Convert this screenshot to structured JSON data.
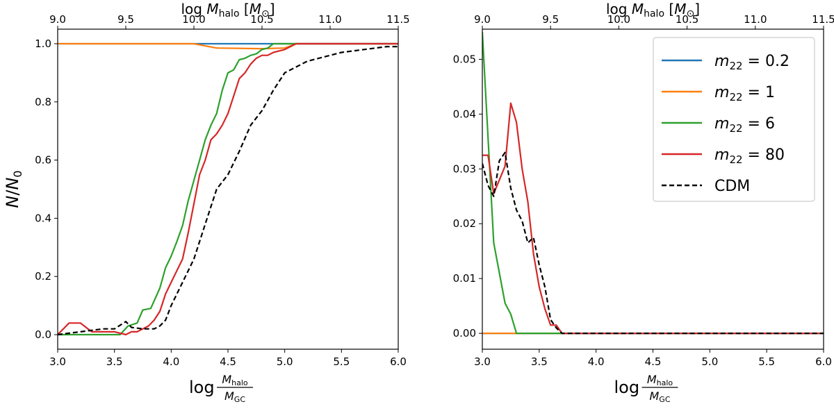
{
  "chart_data": [
    {
      "type": "line",
      "panel": "left",
      "xlabel": "log M_halo / M_GC",
      "ylabel": "N/N0",
      "top_xlabel": "log M_halo [M_⊙]",
      "xlim": [
        3.0,
        6.0
      ],
      "ylim": [
        -0.05,
        1.05
      ],
      "xticks": [
        3.0,
        3.5,
        4.0,
        4.5,
        5.0,
        5.5,
        6.0
      ],
      "yticks": [
        0.0,
        0.2,
        0.4,
        0.6,
        0.8,
        1.0
      ],
      "top_xtick_labels": [
        "9.0",
        "9.5",
        "10.0",
        "10.5",
        "11.0",
        "11.5"
      ],
      "top_xtick_positions": [
        3.0,
        3.6,
        4.2,
        4.8,
        5.4,
        6.0
      ],
      "series": [
        {
          "name": "m22=0.2",
          "color": "#1f77b4",
          "dash": false,
          "x": [
            3.0,
            4.2,
            4.5,
            5.0,
            6.0
          ],
          "y": [
            1.0,
            1.0,
            1.0,
            1.0,
            1.0
          ]
        },
        {
          "name": "m22=1",
          "color": "#ff7f0e",
          "dash": false,
          "x": [
            3.0,
            4.2,
            4.4,
            4.8,
            5.0,
            5.1,
            6.0
          ],
          "y": [
            1.0,
            1.0,
            0.985,
            0.983,
            0.985,
            1.0,
            1.0
          ]
        },
        {
          "name": "m22=6",
          "color": "#2ca02c",
          "dash": false,
          "x": [
            3.0,
            3.55,
            3.62,
            3.7,
            3.75,
            3.82,
            3.9,
            3.95,
            4.0,
            4.05,
            4.1,
            4.15,
            4.2,
            4.25,
            4.3,
            4.35,
            4.4,
            4.45,
            4.5,
            4.55,
            4.6,
            4.65,
            4.7,
            4.75,
            4.8,
            4.85,
            4.9,
            4.95,
            5.0,
            5.1,
            6.0
          ],
          "y": [
            0.0,
            0.0,
            0.03,
            0.04,
            0.085,
            0.09,
            0.16,
            0.23,
            0.27,
            0.32,
            0.375,
            0.46,
            0.53,
            0.6,
            0.67,
            0.72,
            0.76,
            0.84,
            0.9,
            0.91,
            0.945,
            0.95,
            0.96,
            0.965,
            0.98,
            0.985,
            1.0,
            1.0,
            1.0,
            1.0,
            1.0
          ]
        },
        {
          "name": "m22=80",
          "color": "#d62728",
          "dash": false,
          "x": [
            3.0,
            3.05,
            3.1,
            3.2,
            3.3,
            3.5,
            3.6,
            3.65,
            3.7,
            3.75,
            3.8,
            3.85,
            3.9,
            3.95,
            4.0,
            4.05,
            4.1,
            4.15,
            4.2,
            4.25,
            4.3,
            4.35,
            4.4,
            4.45,
            4.5,
            4.55,
            4.6,
            4.65,
            4.7,
            4.75,
            4.8,
            4.85,
            4.9,
            5.0,
            5.1,
            5.2,
            6.0
          ],
          "y": [
            0.0,
            0.02,
            0.04,
            0.04,
            0.01,
            0.01,
            0.0,
            0.01,
            0.01,
            0.02,
            0.03,
            0.05,
            0.08,
            0.14,
            0.18,
            0.22,
            0.26,
            0.35,
            0.45,
            0.55,
            0.6,
            0.67,
            0.69,
            0.72,
            0.76,
            0.82,
            0.88,
            0.9,
            0.93,
            0.95,
            0.96,
            0.96,
            0.97,
            0.98,
            1.0,
            1.0,
            1.0
          ]
        },
        {
          "name": "CDM",
          "color": "#000000",
          "dash": true,
          "x": [
            3.0,
            3.2,
            3.4,
            3.5,
            3.6,
            3.65,
            3.75,
            3.85,
            3.9,
            3.95,
            4.0,
            4.1,
            4.2,
            4.3,
            4.35,
            4.4,
            4.5,
            4.6,
            4.7,
            4.8,
            4.9,
            5.0,
            5.1,
            5.2,
            5.3,
            5.4,
            5.5,
            5.6,
            5.7,
            5.8,
            5.9,
            6.0
          ],
          "y": [
            0.0,
            0.01,
            0.02,
            0.02,
            0.045,
            0.025,
            0.02,
            0.02,
            0.03,
            0.05,
            0.1,
            0.18,
            0.26,
            0.38,
            0.44,
            0.5,
            0.55,
            0.63,
            0.72,
            0.77,
            0.84,
            0.9,
            0.92,
            0.94,
            0.95,
            0.96,
            0.97,
            0.975,
            0.98,
            0.985,
            0.99,
            0.99
          ]
        }
      ]
    },
    {
      "type": "line",
      "panel": "right",
      "xlabel": "log M_halo / M_GC",
      "top_xlabel": "log M_halo [M_⊙]",
      "xlim": [
        3.0,
        6.0
      ],
      "ylim": [
        -0.0029,
        0.0555
      ],
      "xticks": [
        3.0,
        3.5,
        4.0,
        4.5,
        5.0,
        5.5,
        6.0
      ],
      "yticks": [
        0.0,
        0.01,
        0.02,
        0.03,
        0.04,
        0.05
      ],
      "top_xtick_labels": [
        "9.0",
        "9.5",
        "10.0",
        "10.5",
        "11.0",
        "11.5"
      ],
      "top_xtick_positions": [
        3.0,
        3.6,
        4.2,
        4.8,
        5.4,
        6.0
      ],
      "legend": "top-right",
      "series": [
        {
          "name": "m22=0.2",
          "color": "#1f77b4",
          "dash": false,
          "x": [
            3.0,
            6.0
          ],
          "y": [
            0.0,
            0.0
          ]
        },
        {
          "name": "m22=1",
          "color": "#ff7f0e",
          "dash": false,
          "x": [
            3.0,
            6.0
          ],
          "y": [
            0.0,
            0.0
          ]
        },
        {
          "name": "m22=6",
          "color": "#2ca02c",
          "dash": false,
          "x": [
            3.0,
            3.1,
            3.2,
            3.25,
            3.3,
            6.0
          ],
          "y": [
            0.055,
            0.0165,
            0.0055,
            0.0035,
            0.0,
            0.0
          ]
        },
        {
          "name": "m22=80",
          "color": "#d62728",
          "dash": false,
          "x": [
            3.0,
            3.05,
            3.1,
            3.2,
            3.25,
            3.3,
            3.35,
            3.4,
            3.45,
            3.5,
            3.55,
            3.6,
            3.65,
            3.7,
            3.75,
            6.0
          ],
          "y": [
            0.0325,
            0.0325,
            0.0255,
            0.0305,
            0.042,
            0.0385,
            0.03,
            0.024,
            0.0145,
            0.0085,
            0.0045,
            0.0015,
            0.0015,
            0.0,
            0.0,
            0.0
          ]
        },
        {
          "name": "CDM",
          "color": "#000000",
          "dash": true,
          "x": [
            3.0,
            3.05,
            3.1,
            3.15,
            3.2,
            3.25,
            3.3,
            3.35,
            3.4,
            3.45,
            3.5,
            3.55,
            3.6,
            3.65,
            3.7,
            3.75,
            6.0
          ],
          "y": [
            0.031,
            0.027,
            0.025,
            0.0315,
            0.033,
            0.0265,
            0.0225,
            0.0205,
            0.0165,
            0.0175,
            0.0125,
            0.0085,
            0.0025,
            0.001,
            0.0,
            0.0,
            0.0
          ]
        }
      ]
    }
  ],
  "legend_entries": [
    {
      "label": "m22=0.2",
      "color": "#1f77b4",
      "dash": false
    },
    {
      "label": "m22=1",
      "color": "#ff7f0e",
      "dash": false
    },
    {
      "label": "m22=6",
      "color": "#2ca02c",
      "dash": false
    },
    {
      "label": "m22=80",
      "color": "#d62728",
      "dash": false
    },
    {
      "label": "CDM",
      "color": "#000000",
      "dash": true
    }
  ]
}
